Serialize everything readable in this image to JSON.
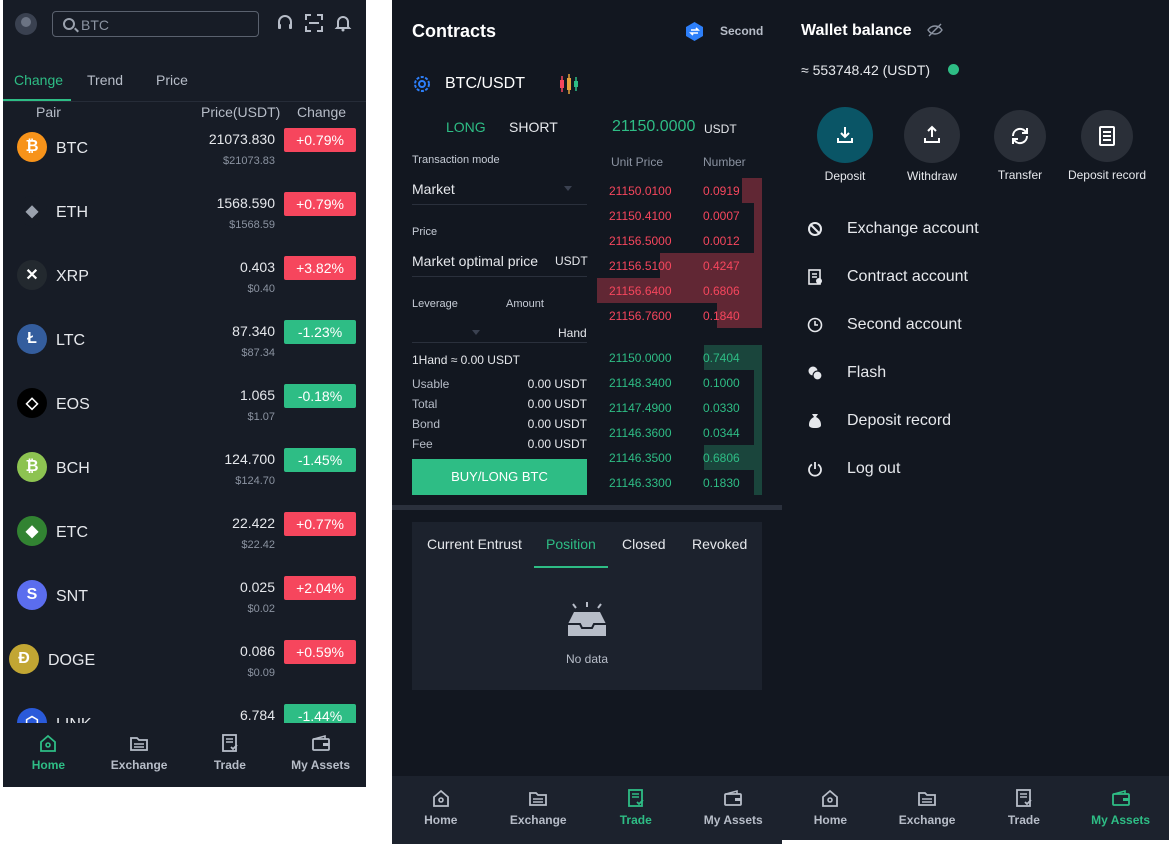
{
  "home": {
    "search_placeholder": "BTC",
    "tabs": [
      "Change",
      "Trend",
      "Price"
    ],
    "headers": {
      "pair": "Pair",
      "price": "Price(USDT)",
      "change": "Change"
    },
    "coins": [
      {
        "sym": "BTC",
        "price": "21073.830",
        "usd": "$21073.83",
        "change": "+0.79%",
        "dir": "up",
        "color": "#f7931a",
        "glyph": "₿"
      },
      {
        "sym": "ETH",
        "price": "1568.590",
        "usd": "$1568.59",
        "change": "+0.79%",
        "dir": "up",
        "color": "#171c26",
        "glyph": "◆"
      },
      {
        "sym": "XRP",
        "price": "0.403",
        "usd": "$0.40",
        "change": "+3.82%",
        "dir": "up",
        "color": "#23292f",
        "glyph": "✕"
      },
      {
        "sym": "LTC",
        "price": "87.340",
        "usd": "$87.34",
        "change": "-1.23%",
        "dir": "down",
        "color": "#345d9d",
        "glyph": "Ł"
      },
      {
        "sym": "EOS",
        "price": "1.065",
        "usd": "$1.07",
        "change": "-0.18%",
        "dir": "down",
        "color": "#000000",
        "glyph": "◇"
      },
      {
        "sym": "BCH",
        "price": "124.700",
        "usd": "$124.70",
        "change": "-1.45%",
        "dir": "down",
        "color": "#8dc351",
        "glyph": "₿"
      },
      {
        "sym": "ETC",
        "price": "22.422",
        "usd": "$22.42",
        "change": "+0.77%",
        "dir": "up",
        "color": "#328332",
        "glyph": "◆"
      },
      {
        "sym": "SNT",
        "price": "0.025",
        "usd": "$0.02",
        "change": "+2.04%",
        "dir": "up",
        "color": "#5b6dee",
        "glyph": "S"
      },
      {
        "sym": "DOGE",
        "price": "0.086",
        "usd": "$0.09",
        "change": "+0.59%",
        "dir": "up",
        "color": "#c2a633",
        "glyph": "Ð"
      },
      {
        "sym": "LINK",
        "price": "6.784",
        "usd": "",
        "change": "-1.44%",
        "dir": "down",
        "color": "#2a5ada",
        "glyph": "⬡"
      }
    ],
    "nav": [
      "Home",
      "Exchange",
      "Trade",
      "My Assets"
    ]
  },
  "contracts": {
    "title": "Contracts",
    "second_label": "Second",
    "pair": "BTC/USDT",
    "long": "LONG",
    "short": "SHORT",
    "price": "21150.0000",
    "price_unit": "USDT",
    "transaction_mode_label": "Transaction mode",
    "transaction_mode": "Market",
    "price_label": "Price",
    "price_value": "Market optimal price",
    "price_value_unit": "USDT",
    "leverage_label": "Leverage",
    "amount_label": "Amount",
    "amount_unit": "Hand",
    "hand_info": "1Hand ≈ 0.00 USDT",
    "info": [
      {
        "label": "Usable",
        "value": "0.00 USDT"
      },
      {
        "label": "Total",
        "value": "0.00 USDT"
      },
      {
        "label": "Bond",
        "value": "0.00 USDT"
      },
      {
        "label": "Fee",
        "value": "0.00 USDT"
      }
    ],
    "buy_button": "BUY/LONG BTC",
    "orderbook": {
      "head_price": "Unit Price",
      "head_number": "Number",
      "asks": [
        {
          "price": "21150.0100",
          "num": "0.0919",
          "depth": 0.12
        },
        {
          "price": "21150.4100",
          "num": "0.0007",
          "depth": 0.05
        },
        {
          "price": "21156.5000",
          "num": "0.0012",
          "depth": 0.05
        },
        {
          "price": "21156.5100",
          "num": "0.4247",
          "depth": 0.62
        },
        {
          "price": "21156.6400",
          "num": "0.6806",
          "depth": 1.0
        },
        {
          "price": "21156.7600",
          "num": "0.1840",
          "depth": 0.27
        }
      ],
      "bids": [
        {
          "price": "21150.0000",
          "num": "0.7404",
          "depth": 0.35
        },
        {
          "price": "21148.3400",
          "num": "0.1000",
          "depth": 0.05
        },
        {
          "price": "21147.4900",
          "num": "0.0330",
          "depth": 0.05
        },
        {
          "price": "21146.3600",
          "num": "0.0344",
          "depth": 0.05
        },
        {
          "price": "21146.3500",
          "num": "0.6806",
          "depth": 0.35
        },
        {
          "price": "21146.3300",
          "num": "0.1830",
          "depth": 0.05
        }
      ]
    },
    "order_tabs": [
      "Current Entrust",
      "Position",
      "Closed",
      "Revoked"
    ],
    "no_data": "No data",
    "nav": [
      "Home",
      "Exchange",
      "Trade",
      "My Assets"
    ]
  },
  "assets": {
    "title": "Wallet balance",
    "amount": "≈ 553748.42 (USDT)",
    "actions": [
      "Deposit",
      "Withdraw",
      "Transfer",
      "Deposit record"
    ],
    "menu": [
      "Exchange account",
      "Contract account",
      "Second account",
      "Flash",
      "Deposit record",
      "Log out"
    ],
    "nav": [
      "Home",
      "Exchange",
      "Trade",
      "My Assets"
    ]
  }
}
